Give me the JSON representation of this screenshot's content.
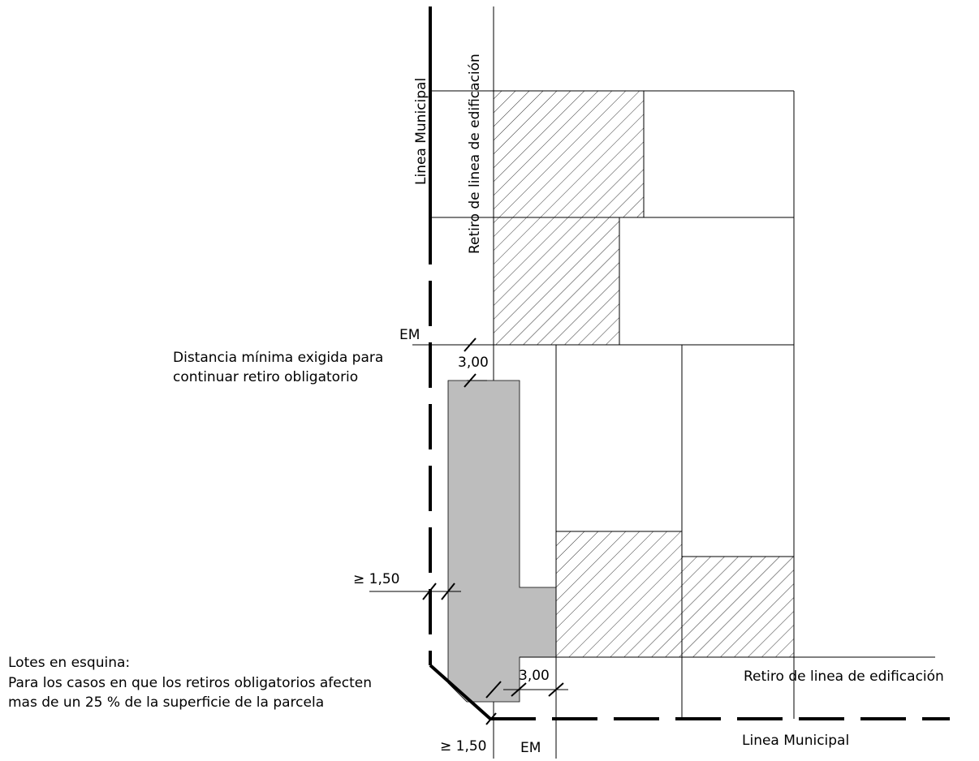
{
  "labels": {
    "linea_municipal_vertical": "Linea Municipal",
    "retiro_vertical": "Retiro de linea de edificación",
    "em_top": "EM",
    "distancia_line1": "Distancia mínima exigida para",
    "distancia_line2": "continuar retiro obligatorio",
    "dim_300_top": "3,00",
    "dim_150_left": "≥  1,50",
    "lotes_title": "Lotes en esquina:",
    "lotes_line1": "Para los casos en que los retiros obligatorios afecten",
    "lotes_line2": "mas de un 25 % de la superficie de la parcela",
    "dim_300_bottom": "3,00",
    "retiro_horizontal": "Retiro de linea de edificación",
    "dim_150_bottom": "≥ 1,50",
    "em_bottom": "EM",
    "linea_municipal_horizontal": "Linea Municipal"
  },
  "colors": {
    "gray_fill": "#bdbdbd",
    "hatch": "#000000",
    "lines": "#000000"
  }
}
